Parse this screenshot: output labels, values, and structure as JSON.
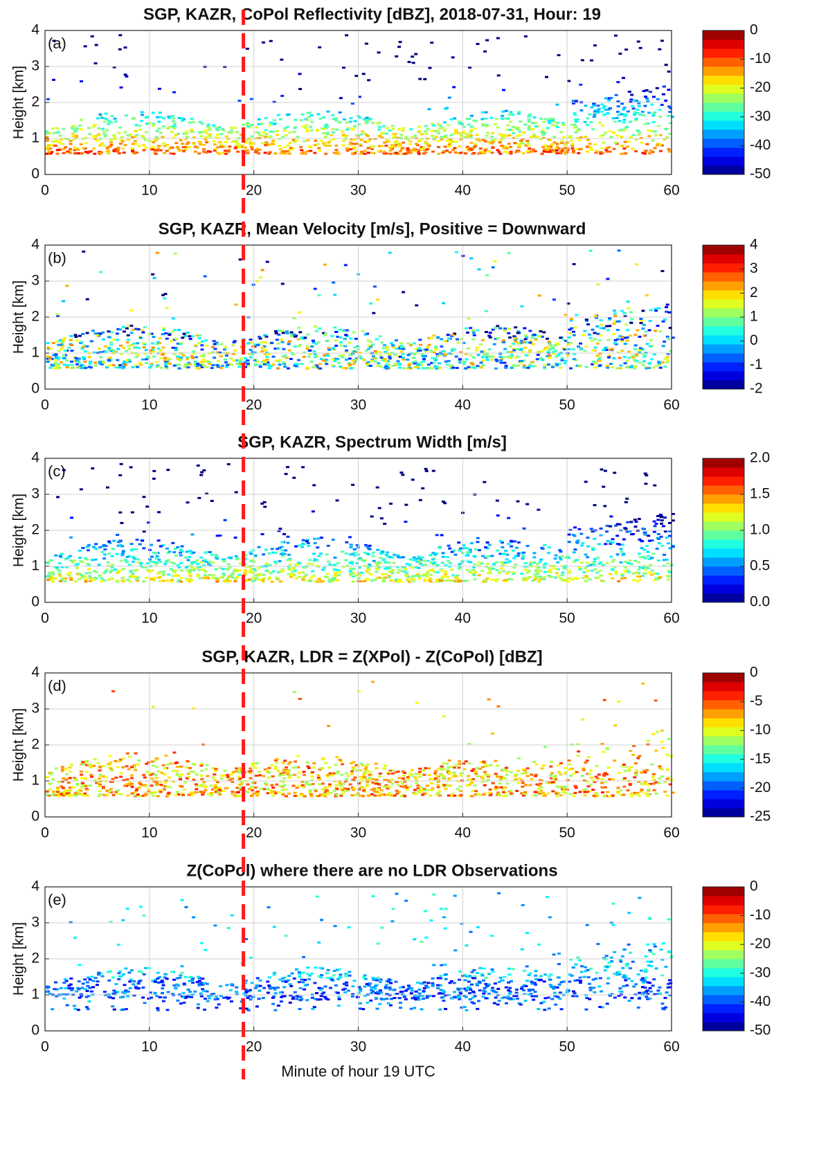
{
  "reference_line_x": 19,
  "reference_line_color": "#ff1a1a",
  "chart_data": [
    {
      "type": "heatmap",
      "title": "SGP, KAZR, CoPol Reflectivity [dBZ], 2018-07-31, Hour: 19",
      "panel_label": "(a)",
      "ylabel": "Height [km]",
      "xlim": [
        0,
        60
      ],
      "xticks": [
        0,
        10,
        20,
        30,
        40,
        50,
        60
      ],
      "ylim": [
        0,
        4
      ],
      "yticks": [
        0,
        1,
        2,
        3,
        4
      ],
      "grid": true,
      "colormap": "jet",
      "clim": [
        -50,
        0
      ],
      "cticks": [
        0,
        -10,
        -20,
        -30,
        -40,
        -50
      ]
    },
    {
      "type": "heatmap",
      "title": "SGP, KAZR, Mean Velocity [m/s], Positive = Downward",
      "panel_label": "(b)",
      "ylabel": "Height [km]",
      "xlim": [
        0,
        60
      ],
      "xticks": [
        0,
        10,
        20,
        30,
        40,
        50,
        60
      ],
      "ylim": [
        0,
        4
      ],
      "yticks": [
        0,
        1,
        2,
        3,
        4
      ],
      "grid": true,
      "colormap": "jet",
      "clim": [
        -2,
        4
      ],
      "cticks": [
        4,
        3,
        2,
        1,
        0,
        -1,
        -2
      ]
    },
    {
      "type": "heatmap",
      "title": "SGP, KAZR, Spectrum Width [m/s]",
      "panel_label": "(c)",
      "ylabel": "Height [km]",
      "xlim": [
        0,
        60
      ],
      "xticks": [
        0,
        10,
        20,
        30,
        40,
        50,
        60
      ],
      "ylim": [
        0,
        4
      ],
      "yticks": [
        0,
        1,
        2,
        3,
        4
      ],
      "grid": true,
      "colormap": "jet",
      "clim": [
        0,
        2
      ],
      "cticks": [
        {
          "value": 2,
          "label": "2.0"
        },
        1.5,
        {
          "value": 1,
          "label": "1.0"
        },
        0.5,
        {
          "value": 0,
          "label": "0.0"
        }
      ]
    },
    {
      "type": "heatmap",
      "title": "SGP, KAZR, LDR = Z(XPol) - Z(CoPol) [dBZ]",
      "panel_label": "(d)",
      "ylabel": "Height [km]",
      "xlim": [
        0,
        60
      ],
      "xticks": [
        0,
        10,
        20,
        30,
        40,
        50,
        60
      ],
      "ylim": [
        0,
        4
      ],
      "yticks": [
        0,
        1,
        2,
        3,
        4
      ],
      "grid": true,
      "colormap": "jet",
      "clim": [
        -25,
        0
      ],
      "cticks": [
        0,
        -5,
        -10,
        -15,
        -20,
        -25
      ]
    },
    {
      "type": "heatmap",
      "title": "Z(CoPol) where there are no LDR Observations",
      "panel_label": "(e)",
      "ylabel": "Height [km]",
      "xlabel": "Minute of hour 19 UTC",
      "xlim": [
        0,
        60
      ],
      "xticks": [
        0,
        10,
        20,
        30,
        40,
        50,
        60
      ],
      "ylim": [
        0,
        4
      ],
      "yticks": [
        0,
        1,
        2,
        3,
        4
      ],
      "grid": true,
      "colormap": "jet",
      "clim": [
        -50,
        0
      ],
      "cticks": [
        0,
        -10,
        -20,
        -30,
        -40,
        -50
      ]
    }
  ]
}
